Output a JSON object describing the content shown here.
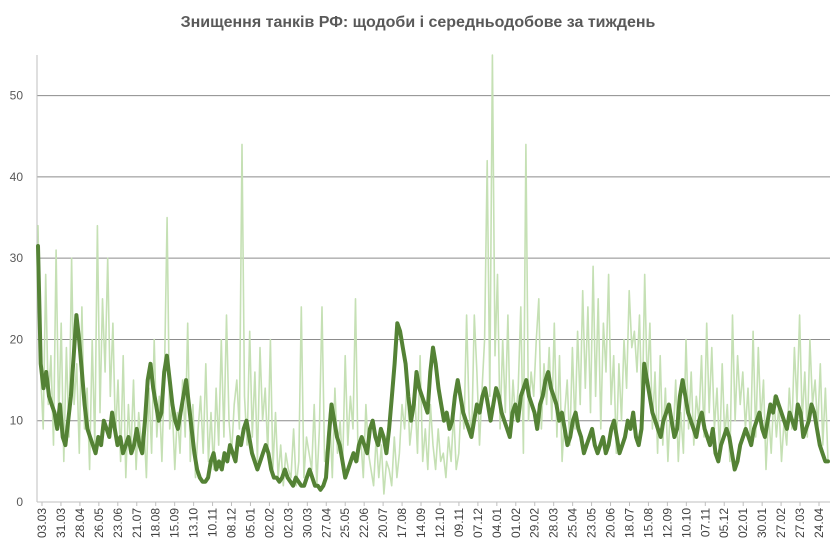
{
  "chart_data": {
    "type": "line",
    "title": "Знищення танків РФ: щодоби і середньодобове за тиждень",
    "xlabel": "",
    "ylabel": "",
    "ylim": [
      0,
      55
    ],
    "y_ticks": [
      0,
      10,
      20,
      30,
      40,
      50
    ],
    "grid": true,
    "legend": "none",
    "x_tick_labels": [
      "03.03",
      "31.03",
      "28.04",
      "26.05",
      "23.06",
      "21.07",
      "18.08",
      "15.09",
      "13.10",
      "10.11",
      "08.12",
      "05.01",
      "02.02",
      "02.03",
      "30.03",
      "27.04",
      "25.05",
      "22.06",
      "20.07",
      "17.08",
      "14.09",
      "12.10",
      "09.11",
      "07.12",
      "04.01",
      "01.02",
      "29.02",
      "28.03",
      "25.04",
      "23.05",
      "20.06",
      "18.07",
      "15.08",
      "12.09",
      "10.10",
      "07.11",
      "05.12",
      "02.01",
      "30.01",
      "27.02",
      "27.03",
      "24.04"
    ],
    "colors": {
      "daily": "#c5e0b4",
      "weekly": "#548235",
      "grid": "#8c8c8c",
      "axis": "#bfbfbf"
    },
    "series": [
      {
        "name": "",
        "style": "daily",
        "values": [
          34,
          16,
          9,
          28,
          12,
          18,
          7,
          31,
          10,
          22,
          5,
          19,
          8,
          30,
          12,
          17,
          6,
          24,
          9,
          14,
          4,
          20,
          7,
          34,
          11,
          25,
          16,
          30,
          13,
          22,
          8,
          15,
          5,
          18,
          3,
          12,
          6,
          15,
          4,
          11,
          7,
          10,
          3,
          14,
          6,
          20,
          8,
          13,
          5,
          16,
          35,
          9,
          12,
          4,
          11,
          6,
          15,
          8,
          22,
          5,
          12,
          3,
          9,
          13,
          6,
          17,
          5,
          11,
          4,
          14,
          7,
          20,
          8,
          23,
          10,
          6,
          12,
          15,
          9,
          44,
          13,
          7,
          21,
          8,
          16,
          5,
          19,
          10,
          14,
          6,
          20,
          4,
          11,
          3,
          7,
          2,
          6,
          4,
          3,
          9,
          2,
          5,
          24,
          3,
          8,
          6,
          4,
          12,
          2,
          9,
          24,
          5,
          7,
          11,
          3,
          14,
          6,
          10,
          4,
          18,
          7,
          13,
          9,
          25,
          5,
          8,
          3,
          12,
          6,
          4,
          2,
          8,
          3,
          7,
          1,
          5,
          4,
          2,
          8,
          3,
          6,
          12,
          9,
          15,
          7,
          10,
          13,
          6,
          18,
          5,
          9,
          4,
          12,
          7,
          4,
          9,
          5,
          6,
          3,
          8,
          5,
          11,
          4,
          6,
          13,
          9,
          23,
          11,
          8,
          23,
          16,
          7,
          14,
          20,
          42,
          13,
          55,
          18,
          28,
          9,
          20,
          11,
          23,
          8,
          15,
          10,
          14,
          24,
          6,
          44,
          10,
          16,
          13,
          20,
          25,
          9,
          17,
          12,
          19,
          10,
          22,
          8,
          18,
          5,
          11,
          15,
          7,
          19,
          9,
          21,
          12,
          26,
          14,
          24,
          11,
          29,
          13,
          25,
          9,
          22,
          16,
          28,
          12,
          18,
          6,
          17,
          10,
          20,
          14,
          26,
          19,
          21,
          16,
          23,
          10,
          28,
          14,
          22,
          9,
          16,
          6,
          18,
          7,
          14,
          5,
          12,
          8,
          15,
          5,
          11,
          6,
          20,
          9,
          16,
          7,
          13,
          10,
          18,
          8,
          22,
          11,
          19,
          9,
          14,
          6,
          17,
          8,
          12,
          5,
          23,
          10,
          18,
          12,
          16,
          9,
          14,
          7,
          21,
          8,
          19,
          10,
          15,
          4,
          11,
          6,
          13,
          8,
          12,
          5,
          10,
          7,
          14,
          9,
          19,
          12,
          23,
          10,
          16,
          8,
          20,
          12,
          15,
          9,
          17,
          7,
          14,
          5
        ]
      },
      {
        "name": "",
        "style": "weekly",
        "values": [
          31.5,
          17,
          14,
          16,
          13,
          12,
          11,
          9,
          12,
          8,
          7,
          10,
          13,
          18,
          23,
          20,
          16,
          12,
          9,
          8,
          7,
          6,
          8,
          7,
          10,
          9,
          8,
          11,
          9,
          7,
          8,
          6,
          7,
          8,
          6,
          7,
          9,
          7,
          6,
          10,
          15,
          17,
          14,
          12,
          10,
          11,
          16,
          18,
          15,
          12,
          10,
          9,
          11,
          13,
          15,
          12,
          9,
          6,
          4,
          3,
          2.5,
          2.5,
          3,
          5,
          6,
          4,
          5,
          4,
          6,
          5,
          7,
          6,
          5,
          8,
          7,
          9,
          10,
          8,
          6,
          5,
          4,
          5,
          6,
          7,
          6,
          4,
          3,
          3,
          2.5,
          3,
          4,
          3,
          2.5,
          2,
          3,
          2.5,
          2,
          2,
          3,
          4,
          3,
          2,
          2,
          1.5,
          2,
          3,
          8,
          12,
          10,
          8,
          7,
          5,
          3,
          4,
          5,
          6,
          5,
          7,
          8,
          7,
          6,
          9,
          10,
          8,
          7,
          9,
          8,
          6,
          9,
          13,
          17,
          22,
          21,
          19,
          17,
          13,
          10,
          12,
          16,
          14,
          13,
          12,
          11,
          16,
          19,
          17,
          14,
          12,
          10,
          11,
          9,
          10,
          13,
          15,
          13,
          11,
          10,
          9,
          8,
          10,
          12,
          11,
          13,
          14,
          12,
          10,
          12,
          14,
          13,
          11,
          10,
          9,
          8,
          11,
          12,
          10,
          13,
          14,
          15,
          13,
          12,
          11,
          9,
          12,
          13,
          15,
          16,
          14,
          13,
          12,
          10,
          11,
          9,
          7,
          8,
          10,
          11,
          9,
          8,
          6,
          7,
          8,
          9,
          7,
          6,
          7,
          8,
          6,
          7,
          9,
          10,
          8,
          6,
          7,
          8,
          10,
          9,
          11,
          8,
          7,
          9,
          17,
          15,
          13,
          11,
          10,
          9,
          8,
          10,
          11,
          12,
          10,
          8,
          9,
          13,
          15,
          13,
          11,
          10,
          9,
          8,
          10,
          11,
          9,
          8,
          7,
          9,
          6,
          5,
          7,
          8,
          9,
          8,
          6,
          4,
          5,
          7,
          8,
          9,
          8,
          7,
          9,
          10,
          11,
          9,
          8,
          10,
          12,
          11,
          13,
          12,
          11,
          10,
          9,
          11,
          10,
          9,
          12,
          11,
          8,
          9,
          10,
          12,
          11,
          9,
          7,
          6,
          5,
          5
        ]
      }
    ]
  }
}
